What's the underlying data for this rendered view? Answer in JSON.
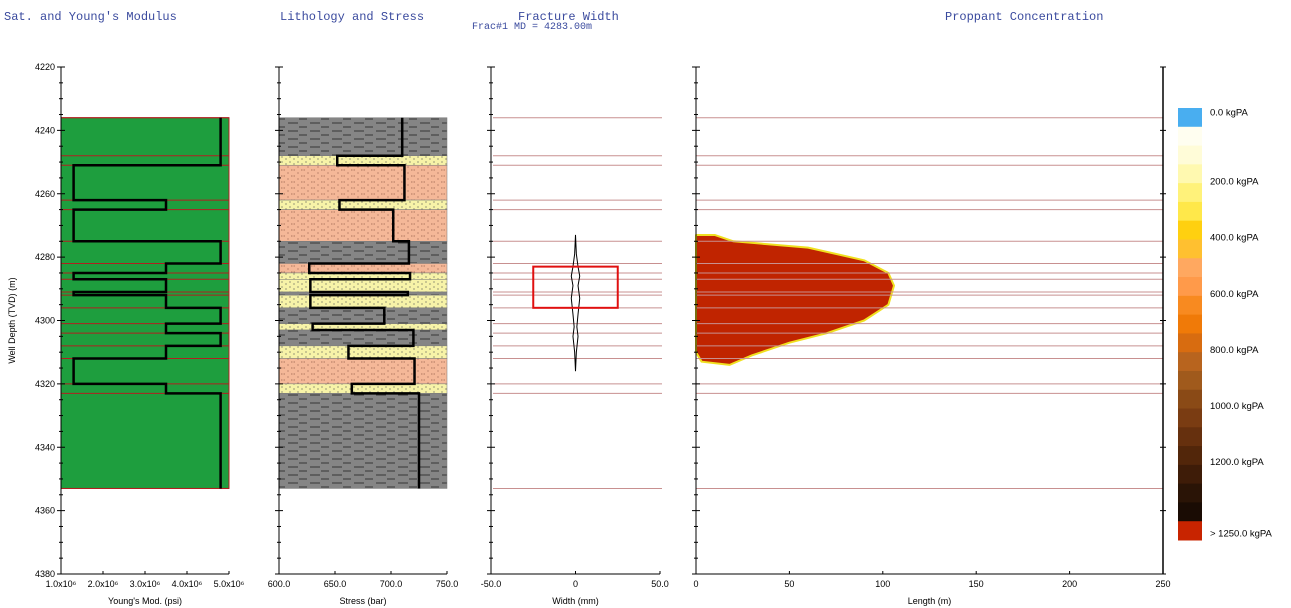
{
  "titles": {
    "panel1": "Sat. and Young's Modulus",
    "panel2": "Lithology and Stress",
    "panel3": "Fracture Width",
    "panel3_sub": "Frac#1 MD = 4283.00m",
    "panel4": "Proppant Concentration"
  },
  "chart_data": [
    {
      "type": "line",
      "panel": "youngs",
      "title": "Sat. and Young's Modulus",
      "xlabel": "Young's Mod. (psi)",
      "ylabel": "Well Depth (TVD) (m)",
      "xlim": [
        1000000,
        5000000
      ],
      "ylim": [
        4220,
        4380
      ],
      "x_ticks": [
        "1.0x10⁶",
        "2.0x10⁶",
        "3.0x10⁶",
        "4.0x10⁶",
        "5.0x10⁶"
      ],
      "y_ticks": [
        4220,
        4240,
        4260,
        4280,
        4300,
        4320,
        4340,
        4360,
        4380
      ],
      "fill_color": "#1e9e3e",
      "layer_line_color": "#b02020",
      "layer_depths": [
        4236,
        4248,
        4251,
        4262,
        4265,
        4275,
        4282,
        4285,
        4287,
        4291,
        4292,
        4296,
        4301,
        4304,
        4308,
        4312,
        4320,
        4323,
        4353
      ],
      "profile": [
        {
          "top": 4236,
          "bottom": 4251,
          "value": 4800000
        },
        {
          "top": 4251,
          "bottom": 4262,
          "value": 1300000
        },
        {
          "top": 4262,
          "bottom": 4265,
          "value": 3500000
        },
        {
          "top": 4265,
          "bottom": 4275,
          "value": 1300000
        },
        {
          "top": 4275,
          "bottom": 4282,
          "value": 4800000
        },
        {
          "top": 4282,
          "bottom": 4285,
          "value": 3500000
        },
        {
          "top": 4285,
          "bottom": 4287,
          "value": 1300000
        },
        {
          "top": 4287,
          "bottom": 4291,
          "value": 3500000
        },
        {
          "top": 4291,
          "bottom": 4292,
          "value": 1300000
        },
        {
          "top": 4292,
          "bottom": 4296,
          "value": 3500000
        },
        {
          "top": 4296,
          "bottom": 4301,
          "value": 4800000
        },
        {
          "top": 4301,
          "bottom": 4304,
          "value": 3500000
        },
        {
          "top": 4304,
          "bottom": 4308,
          "value": 4800000
        },
        {
          "top": 4308,
          "bottom": 4312,
          "value": 3500000
        },
        {
          "top": 4312,
          "bottom": 4320,
          "value": 1300000
        },
        {
          "top": 4320,
          "bottom": 4323,
          "value": 3500000
        },
        {
          "top": 4323,
          "bottom": 4353,
          "value": 4800000
        }
      ]
    },
    {
      "type": "line",
      "panel": "stress",
      "title": "Lithology and Stress",
      "xlabel": "Stress (bar)",
      "xlim": [
        600,
        750
      ],
      "ylim": [
        4220,
        4380
      ],
      "x_ticks": [
        "600.0",
        "650.0",
        "700.0",
        "750.0"
      ],
      "lithology_colors": {
        "shale": "#858585",
        "sand": "#f7f3a8",
        "silt": "#f5b898"
      },
      "layers": [
        {
          "top": 4236,
          "bottom": 4248,
          "lith": "shale",
          "stress": 710
        },
        {
          "top": 4248,
          "bottom": 4251,
          "lith": "sand",
          "stress": 652
        },
        {
          "top": 4251,
          "bottom": 4262,
          "lith": "silt",
          "stress": 712
        },
        {
          "top": 4262,
          "bottom": 4265,
          "lith": "sand",
          "stress": 654
        },
        {
          "top": 4265,
          "bottom": 4275,
          "lith": "silt",
          "stress": 702
        },
        {
          "top": 4275,
          "bottom": 4282,
          "lith": "shale",
          "stress": 716
        },
        {
          "top": 4282,
          "bottom": 4285,
          "lith": "silt",
          "stress": 627
        },
        {
          "top": 4285,
          "bottom": 4287,
          "lith": "sand",
          "stress": 717
        },
        {
          "top": 4287,
          "bottom": 4291,
          "lith": "sand",
          "stress": 628
        },
        {
          "top": 4291,
          "bottom": 4292,
          "lith": "shale",
          "stress": 715
        },
        {
          "top": 4292,
          "bottom": 4296,
          "lith": "sand",
          "stress": 628
        },
        {
          "top": 4296,
          "bottom": 4301,
          "lith": "shale",
          "stress": 694
        },
        {
          "top": 4301,
          "bottom": 4303,
          "lith": "sand",
          "stress": 630
        },
        {
          "top": 4303,
          "bottom": 4308,
          "lith": "shale",
          "stress": 720
        },
        {
          "top": 4308,
          "bottom": 4312,
          "lith": "sand",
          "stress": 662
        },
        {
          "top": 4312,
          "bottom": 4320,
          "lith": "silt",
          "stress": 721
        },
        {
          "top": 4320,
          "bottom": 4323,
          "lith": "sand",
          "stress": 665
        },
        {
          "top": 4323,
          "bottom": 4353,
          "lith": "shale",
          "stress": 725
        }
      ]
    },
    {
      "type": "line",
      "panel": "width",
      "title": "Fracture Width",
      "subtitle": "Frac#1 MD = 4283.00m",
      "xlabel": "Width (mm)",
      "xlim": [
        -50,
        50
      ],
      "ylim": [
        4220,
        4380
      ],
      "x_ticks": [
        "-50.0",
        "0",
        "50.0"
      ],
      "perf_interval": {
        "x": [
          -25,
          25
        ],
        "depth": [
          4283,
          4296
        ]
      },
      "profile": [
        {
          "depth": 4273,
          "width": 0
        },
        {
          "depth": 4279,
          "width": 0.5
        },
        {
          "depth": 4283,
          "width": 1.5
        },
        {
          "depth": 4286,
          "width": 2.5
        },
        {
          "depth": 4289,
          "width": 1.5
        },
        {
          "depth": 4293,
          "width": 2.5
        },
        {
          "depth": 4298,
          "width": 1.5
        },
        {
          "depth": 4302,
          "width": 0.8
        },
        {
          "depth": 4305,
          "width": 1.5
        },
        {
          "depth": 4310,
          "width": 0.5
        },
        {
          "depth": 4316,
          "width": 0
        }
      ]
    },
    {
      "type": "area",
      "panel": "proppant",
      "title": "Proppant Concentration",
      "xlabel": "Length (m)",
      "xlim": [
        0,
        250
      ],
      "ylim": [
        4220,
        4380
      ],
      "x_ticks": [
        "0",
        "50",
        "100",
        "150",
        "200",
        "250"
      ],
      "fill_color": "#c02400",
      "edge_color": "#f0e020",
      "outline": [
        [
          0,
          4273
        ],
        [
          10,
          4273
        ],
        [
          20,
          4275
        ],
        [
          60,
          4277
        ],
        [
          90,
          4281
        ],
        [
          103,
          4285
        ],
        [
          106,
          4289
        ],
        [
          103,
          4295
        ],
        [
          90,
          4300
        ],
        [
          70,
          4304
        ],
        [
          50,
          4307
        ],
        [
          30,
          4311
        ],
        [
          18,
          4314
        ],
        [
          3,
          4313
        ],
        [
          0,
          4310
        ]
      ],
      "legend": {
        "labels": [
          "0.0 kgPA",
          "200.0 kgPA",
          "400.0 kgPA",
          "600.0 kgPA",
          "800.0 kgPA",
          "1000.0 kgPA",
          "1200.0 kgPA",
          "> 1250.0 kgPA"
        ],
        "colors": [
          "#49aef0",
          "#fffcd8",
          "#fff27a",
          "#ffd010",
          "#ff9a4a",
          "#f07a08",
          "#b8641e",
          "#7a3c12",
          "#2a1406",
          "#c82400"
        ]
      }
    }
  ]
}
